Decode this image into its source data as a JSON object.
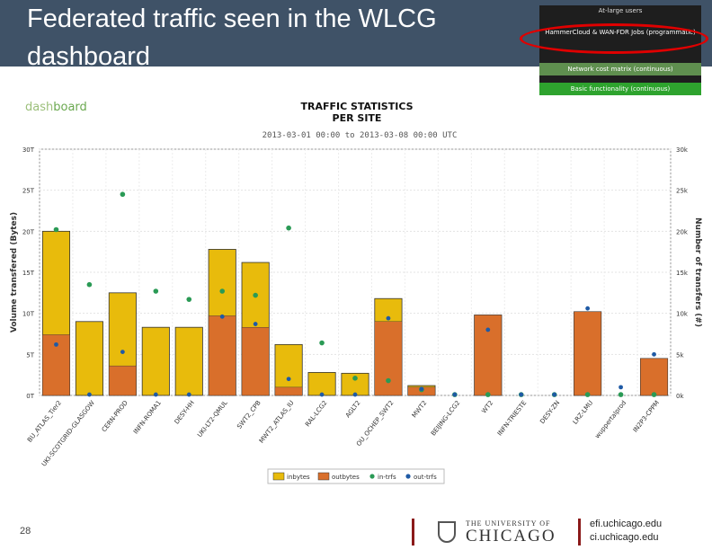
{
  "slide": {
    "title": "Federated traffic seen in the WLCG dashboard",
    "page_number": "28",
    "links": [
      "efi.uchicago.edu",
      "ci.uchicago.edu"
    ],
    "university_small": "THE UNIVERSITY OF",
    "university_big": "CHICAGO"
  },
  "inset": {
    "rows": [
      "At-large users",
      "HammerCloud & WAN-FDR Jobs (programmatic)",
      "Network cost matrix (continuous)",
      "Basic functionality (continuous)"
    ],
    "highlight_color": "#e00000"
  },
  "logo": {
    "prefix": "dash",
    "suffix": "board"
  },
  "chart_data": {
    "type": "bar",
    "title": "TRAFFIC STATISTICS\nPER SITE",
    "subtitle": "2013-03-01 00:00 to 2013-03-08 00:00 UTC",
    "ylabel": "Volume transfered (Bytes)",
    "y2label": "Number of transfers (#)",
    "ylim": [
      0,
      30
    ],
    "y2lim": [
      0,
      30
    ],
    "yticks": [
      "0T",
      "5T",
      "10T",
      "15T",
      "20T",
      "25T",
      "30T"
    ],
    "y2ticks": [
      "0k",
      "5k",
      "10k",
      "15k",
      "20k",
      "25k",
      "30k"
    ],
    "categories": [
      "BU_ATLAS_Tier2",
      "UKI-SCOTGRID-GLASGOW",
      "CERN-PROD",
      "INFN-ROMA1",
      "DESY-HH",
      "UKI-LT2-QMUL",
      "SWT2_CPB",
      "MWT2_ATLAS_IU",
      "RAL-LCG2",
      "AGLT2",
      "OU_OCHEP_SWT2",
      "MWT2",
      "BEIJING-LCG2",
      "WT2",
      "INFN-TRIESTE",
      "DESY-ZN",
      "LRZ-LMU",
      "wuppertalprod",
      "IN2P3-CPPM"
    ],
    "series": [
      {
        "name": "inbytes",
        "color": "#e8bb0c",
        "values": [
          20.0,
          9.0,
          12.5,
          8.3,
          8.3,
          17.8,
          16.2,
          6.2,
          2.8,
          2.7,
          11.8,
          1.2,
          0,
          9.0,
          0,
          0,
          9.5,
          0,
          4.5
        ]
      },
      {
        "name": "outbytes",
        "color": "#d96f2b",
        "values": [
          7.4,
          0,
          3.6,
          0,
          0,
          9.7,
          8.3,
          1.0,
          0,
          0,
          9.0,
          1.0,
          0,
          9.8,
          0,
          0,
          10.2,
          0,
          4.5
        ]
      },
      {
        "name": "in-trfs",
        "color": "#2a9a55",
        "values": [
          20.2,
          13.5,
          24.5,
          12.7,
          11.7,
          12.7,
          12.2,
          20.4,
          6.4,
          2.1,
          1.8,
          0.7,
          0.1,
          0.1,
          0.1,
          0.1,
          0.1,
          0.1,
          0.1
        ]
      },
      {
        "name": "out-trfs",
        "color": "#1f5aa5",
        "values": [
          6.2,
          0.1,
          5.3,
          0.1,
          0.1,
          9.6,
          8.7,
          2.0,
          0.1,
          0.1,
          9.4,
          0.8,
          0.1,
          8.0,
          0.1,
          0.1,
          10.6,
          1.0,
          5.0
        ]
      }
    ],
    "grid": true,
    "legend": "bottom-center"
  }
}
